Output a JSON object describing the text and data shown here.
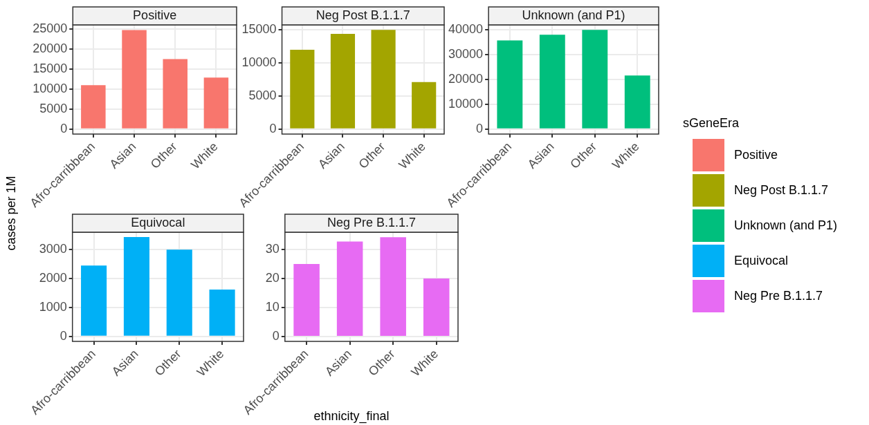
{
  "chart_data": [
    {
      "type": "bar",
      "title": "Positive",
      "ylabel": "cases per 1M",
      "legend_title": "sGeneEra",
      "legend": "right",
      "categories": [
        "Afro-carribbean",
        "Asian",
        "Other",
        "White"
      ],
      "series": [
        {
          "name": "Positive",
          "color": "#f8766d",
          "values": [
            11000,
            24800,
            17500,
            12900
          ]
        }
      ],
      "ylim": [
        -1240,
        26080
      ],
      "yticks": [
        0,
        5000,
        10000,
        15000,
        20000,
        25000
      ],
      "grid": true
    },
    {
      "type": "bar",
      "title": "Neg Post B.1.1.7",
      "categories": [
        "Afro-carribbean",
        "Asian",
        "Other",
        "White"
      ],
      "series": [
        {
          "name": "Neg Post B.1.1.7",
          "color": "#a3a500",
          "values": [
            12000,
            14400,
            15000,
            7100
          ]
        }
      ],
      "ylim": [
        -750,
        15750
      ],
      "yticks": [
        0,
        5000,
        10000,
        15000
      ],
      "grid": true
    },
    {
      "type": "bar",
      "title": "Unknown (and P1)",
      "categories": [
        "Afro-carribbean",
        "Asian",
        "Other",
        "White"
      ],
      "series": [
        {
          "name": "Unknown (and P1)",
          "color": "#00bf7d",
          "values": [
            35700,
            38000,
            40000,
            21600
          ]
        }
      ],
      "ylim": [
        -2000,
        42000
      ],
      "yticks": [
        0,
        10000,
        20000,
        30000,
        40000
      ],
      "grid": true
    },
    {
      "type": "bar",
      "title": "Equivocal",
      "categories": [
        "Afro-carribbean",
        "Asian",
        "Other",
        "White"
      ],
      "series": [
        {
          "name": "Equivocal",
          "color": "#00b0f6",
          "values": [
            2450,
            3430,
            3000,
            1620
          ]
        }
      ],
      "ylim": [
        -172,
        3600
      ],
      "yticks": [
        0,
        1000,
        2000,
        3000
      ],
      "grid": true
    },
    {
      "type": "bar",
      "title": "Neg Pre B.1.1.7",
      "xlabel": "ethnicity_final",
      "categories": [
        "Afro-carribbean",
        "Asian",
        "Other",
        "White"
      ],
      "series": [
        {
          "name": "Neg Pre B.1.1.7",
          "color": "#e76bf3",
          "values": [
            25,
            32.8,
            34.3,
            20
          ]
        }
      ],
      "ylim": [
        -1.7,
        36
      ],
      "yticks": [
        0,
        10,
        20,
        30
      ],
      "grid": true
    }
  ]
}
